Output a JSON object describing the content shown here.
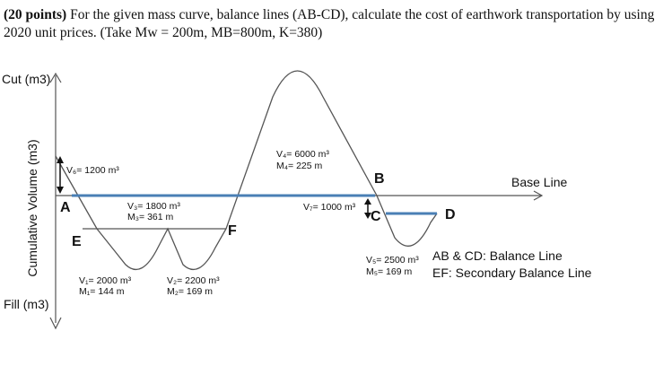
{
  "question": {
    "points": "(20 points)",
    "text": "For the given mass curve, balance lines (AB-CD), calculate the cost of earthwork transportation by using 2020 unit prices. (Take Mw = 200m, MB=800m, K=380)"
  },
  "axis": {
    "cut_label": "Cut (m3)",
    "fill_label": "Fill (m3)",
    "y_title": "Cumulative Volume (m3)",
    "base_line_label": "Base Line"
  },
  "points": {
    "A": "A",
    "B": "B",
    "C": "C",
    "D": "D",
    "E": "E",
    "F": "F"
  },
  "annotations": {
    "v6": "V₆= 1200 m³",
    "v3": "V₃= 1800 m³",
    "m3": "M₃= 361 m",
    "v4": "V₄= 6000 m³",
    "m4": "M₄= 225 m",
    "v7": "V₇= 1000 m³",
    "v1": "V₁= 2000 m³",
    "m1": "M₁= 144 m",
    "v2": "V₂= 2200 m³",
    "m2": "M₂= 169 m",
    "v5": "V₅= 2500 m³",
    "m5": "M₅= 169 m"
  },
  "legend": {
    "line1": "AB & CD: Balance Line",
    "line2": "EF: Secondary Balance Line"
  },
  "colors": {
    "balance_line": "#4a7fb5",
    "curve": "#555555"
  }
}
